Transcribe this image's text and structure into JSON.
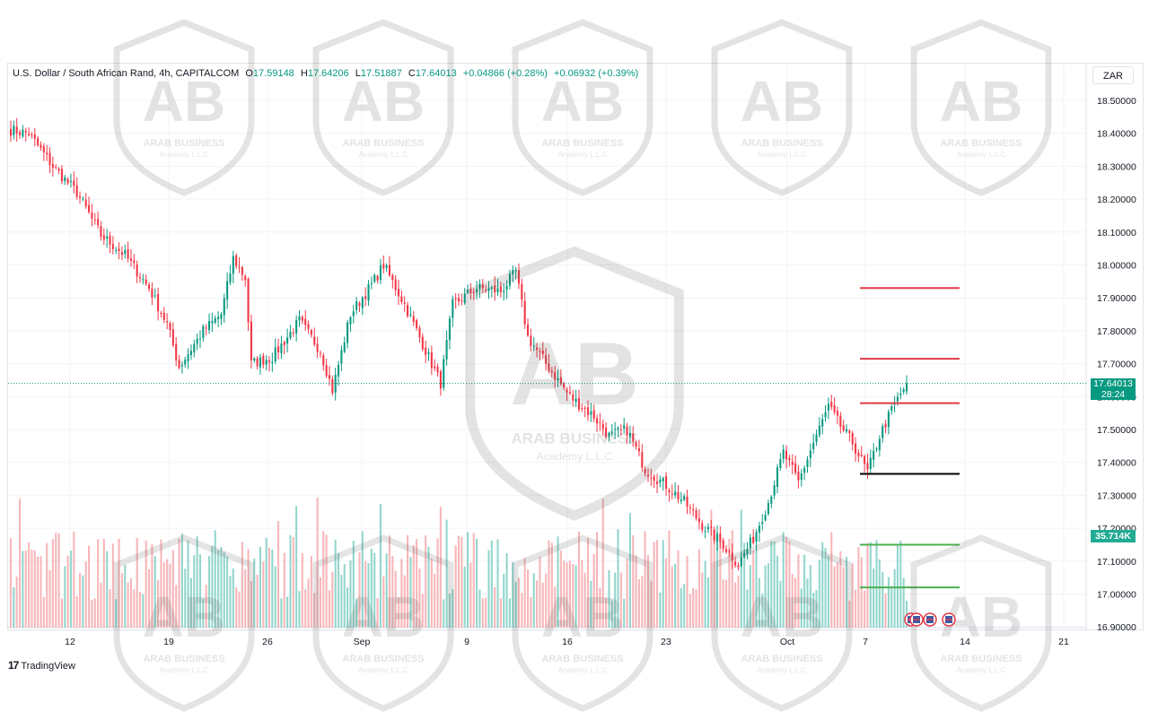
{
  "header": {
    "symbol_title": "U.S. Dollar / South African Rand, 4h, CAPITALCOM",
    "open_label": "O",
    "open": "17.59148",
    "high_label": "H",
    "high": "17.64206",
    "low_label": "L",
    "low": "17.51887",
    "close_label": "C",
    "close": "17.64013",
    "change": "+0.04866 (+0.28%)",
    "change2": "+0.06932 (+0.39%)",
    "currency": "ZAR"
  },
  "branding": {
    "logo_text": "TradingView",
    "logo_mark": "17",
    "watermark_text": "AB",
    "watermark_caption": "ARAB BUSINESS",
    "watermark_sub": "Academy L.L.C"
  },
  "last_price": {
    "value": "17.64013",
    "countdown": "28:24"
  },
  "volume_label": "35.714K",
  "colors": {
    "up": "#089981",
    "down": "#f23645",
    "up_vol": "#7fcfc3",
    "down_vol": "#f7a9ad",
    "level_red": "#e03a48",
    "level_green": "#4caf50",
    "level_black": "#000000"
  },
  "chart_data": {
    "type": "candlestick",
    "symbol": "USD/ZAR",
    "timeframe": "4h",
    "y_axis": {
      "ylim": [
        16.89,
        18.53
      ],
      "ticks": [
        "18.50000",
        "18.40000",
        "18.30000",
        "18.20000",
        "18.10000",
        "18.00000",
        "17.90000",
        "17.80000",
        "17.70000",
        "17.60000",
        "17.50000",
        "17.40000",
        "17.30000",
        "17.20000",
        "17.10000",
        "17.00000",
        "16.90000"
      ]
    },
    "x_axis": {
      "ticks": [
        "12",
        "19",
        "26",
        "Sep",
        "9",
        "16",
        "23",
        "Oct",
        "7",
        "14",
        "21"
      ]
    },
    "anchors": [
      {
        "i": 0,
        "p": 18.41
      },
      {
        "i": 6,
        "p": 18.4
      },
      {
        "i": 14,
        "p": 18.3
      },
      {
        "i": 22,
        "p": 18.22
      },
      {
        "i": 30,
        "p": 18.09
      },
      {
        "i": 38,
        "p": 18.03
      },
      {
        "i": 46,
        "p": 17.93
      },
      {
        "i": 52,
        "p": 17.82
      },
      {
        "i": 56,
        "p": 17.69
      },
      {
        "i": 64,
        "p": 17.8
      },
      {
        "i": 70,
        "p": 17.85
      },
      {
        "i": 74,
        "p": 18.02
      },
      {
        "i": 78,
        "p": 17.96
      },
      {
        "i": 80,
        "p": 17.7
      },
      {
        "i": 87,
        "p": 17.72
      },
      {
        "i": 96,
        "p": 17.83
      },
      {
        "i": 103,
        "p": 17.74
      },
      {
        "i": 107,
        "p": 17.62
      },
      {
        "i": 113,
        "p": 17.85
      },
      {
        "i": 120,
        "p": 17.94
      },
      {
        "i": 124,
        "p": 18.0
      },
      {
        "i": 131,
        "p": 17.88
      },
      {
        "i": 138,
        "p": 17.74
      },
      {
        "i": 143,
        "p": 17.64
      },
      {
        "i": 147,
        "p": 17.88
      },
      {
        "i": 155,
        "p": 17.93
      },
      {
        "i": 163,
        "p": 17.92
      },
      {
        "i": 168,
        "p": 17.98
      },
      {
        "i": 172,
        "p": 17.78
      },
      {
        "i": 178,
        "p": 17.7
      },
      {
        "i": 186,
        "p": 17.6
      },
      {
        "i": 194,
        "p": 17.54
      },
      {
        "i": 199,
        "p": 17.48
      },
      {
        "i": 205,
        "p": 17.5
      },
      {
        "i": 211,
        "p": 17.38
      },
      {
        "i": 218,
        "p": 17.33
      },
      {
        "i": 224,
        "p": 17.28
      },
      {
        "i": 230,
        "p": 17.21
      },
      {
        "i": 237,
        "p": 17.15
      },
      {
        "i": 242,
        "p": 17.09
      },
      {
        "i": 247,
        "p": 17.17
      },
      {
        "i": 252,
        "p": 17.28
      },
      {
        "i": 257,
        "p": 17.43
      },
      {
        "i": 262,
        "p": 17.34
      },
      {
        "i": 267,
        "p": 17.46
      },
      {
        "i": 272,
        "p": 17.57
      },
      {
        "i": 276,
        "p": 17.51
      },
      {
        "i": 280,
        "p": 17.46
      },
      {
        "i": 285,
        "p": 17.37
      },
      {
        "i": 289,
        "p": 17.48
      },
      {
        "i": 293,
        "p": 17.56
      },
      {
        "i": 298,
        "p": 17.64
      }
    ],
    "candle_count": 299,
    "levels": [
      {
        "name": "resistance-3",
        "price": 17.93,
        "color": "red"
      },
      {
        "name": "resistance-2",
        "price": 17.715,
        "color": "red"
      },
      {
        "name": "resistance-1",
        "price": 17.58,
        "color": "red"
      },
      {
        "name": "pivot",
        "price": 17.365,
        "color": "black"
      },
      {
        "name": "support-1",
        "price": 17.15,
        "color": "green"
      },
      {
        "name": "support-2",
        "price": 17.02,
        "color": "green"
      }
    ],
    "last_close": 17.64013,
    "last_volume": "35.714K"
  }
}
